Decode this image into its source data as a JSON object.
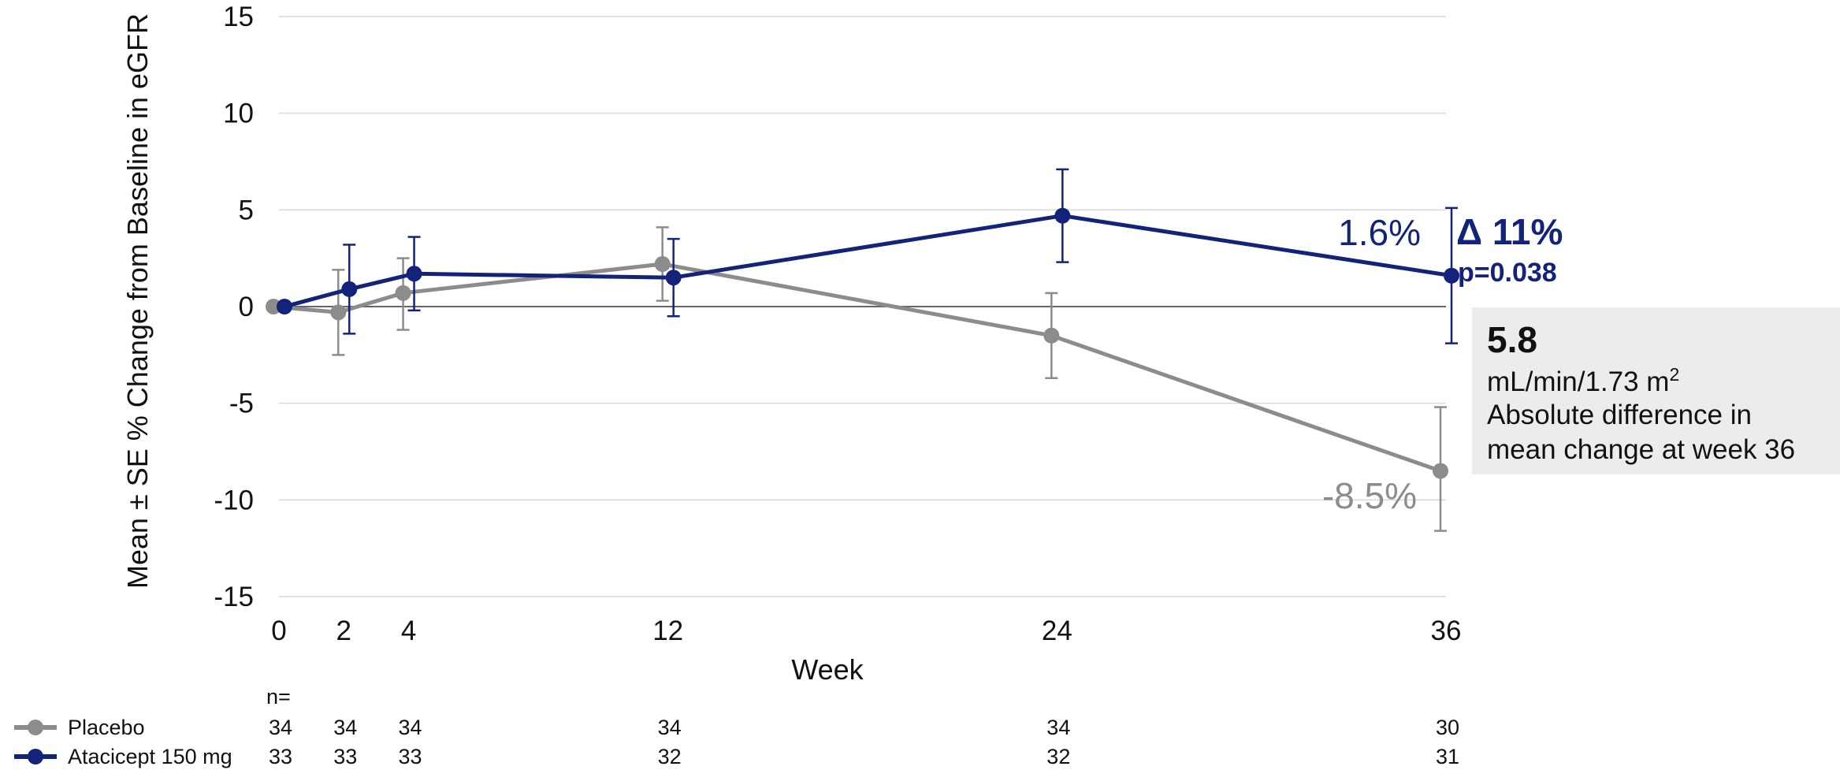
{
  "chart_data": {
    "type": "line",
    "xlabel": "Week",
    "ylabel": "Mean ± SE % Change from Baseline in eGFR",
    "x": [
      0,
      2,
      4,
      12,
      24,
      36
    ],
    "xlim": [
      0,
      36
    ],
    "ylim": [
      -15,
      15
    ],
    "yticks": [
      "15",
      "10",
      "5",
      "0",
      "-5",
      "-10",
      "-15"
    ],
    "xticks": [
      "0",
      "2",
      "4",
      "12",
      "24",
      "36"
    ],
    "grid": true,
    "legend_position": "bottom-left",
    "series": [
      {
        "name": "Placebo",
        "color": "#8c8c8c",
        "values": [
          0.0,
          -0.3,
          0.7,
          2.2,
          -1.5,
          -8.5
        ],
        "err_low": [
          0.0,
          -2.5,
          -1.2,
          0.3,
          -3.7,
          -11.6
        ],
        "err_high": [
          0.0,
          1.9,
          2.5,
          4.1,
          0.7,
          -5.2
        ],
        "n": [
          "34",
          "34",
          "34",
          "34",
          "34",
          "30"
        ],
        "end_label": "-8.5%"
      },
      {
        "name": "Atacicept 150 mg",
        "color": "#14237a",
        "values": [
          0.0,
          0.9,
          1.7,
          1.5,
          4.7,
          1.6
        ],
        "err_low": [
          0.0,
          -1.4,
          -0.2,
          -0.5,
          2.3,
          -1.9
        ],
        "err_high": [
          0.0,
          3.2,
          3.6,
          3.5,
          7.1,
          5.1
        ],
        "n": [
          "33",
          "33",
          "33",
          "32",
          "32",
          "31"
        ],
        "end_label": "1.6%"
      }
    ],
    "n_header": "n=",
    "annotations": {
      "delta": "Δ 11%",
      "p_value": "p=0.038",
      "box_value": "5.8",
      "box_unit": "mL/min/1.73 m",
      "box_unit_sup": "2",
      "box_line1": "Absolute difference in",
      "box_line2": "mean change at week 36"
    }
  }
}
